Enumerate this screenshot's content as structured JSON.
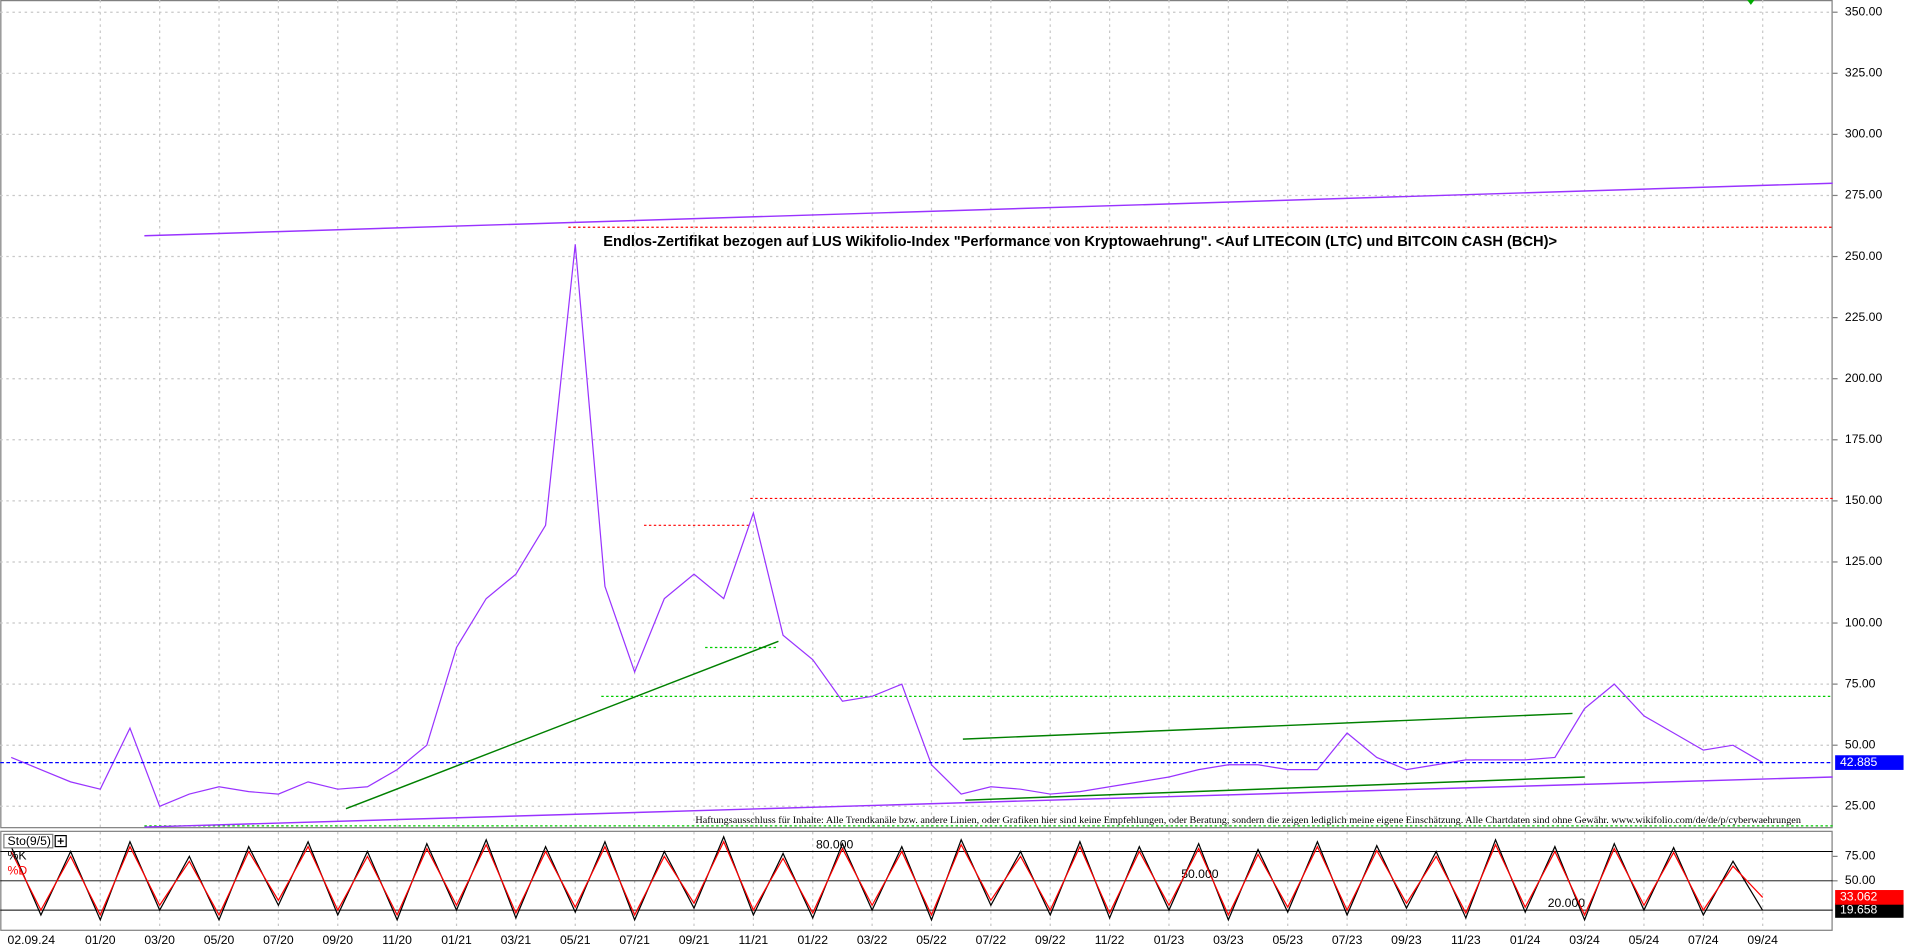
{
  "chart_data": [
    {
      "type": "line",
      "title": "Endlos-Zertifikat bezogen auf LUS Wikifolio-Index \"Performance von Kryptowaehrung\". <Auf LITECOIN (LTC) und BITCOIN CASH (BCH)>",
      "note": "Haftungsausschluss für Inhalte: Alle Trendkanäle bzw. andere Linien, oder Grafiken hier sind keine Empfehlungen, oder Beratung, sondern die zeigen lediglich meine eigene Einschätzung. Alle Chartdaten sind ohne Gewähr.  www.wikifolio.com/de/de/p/cyberwaehrungen",
      "date_label": "02.09.24",
      "categories": [
        null,
        null,
        null,
        "01/20",
        null,
        "03/20",
        null,
        "05/20",
        null,
        "07/20",
        null,
        "09/20",
        null,
        "11/20",
        null,
        "01/21",
        null,
        "03/21",
        null,
        "05/21",
        null,
        "07/21",
        null,
        "09/21",
        null,
        "11/21",
        null,
        "01/22",
        null,
        "03/22",
        null,
        "05/22",
        null,
        "07/22",
        null,
        "09/22",
        null,
        "11/22",
        null,
        "01/23",
        null,
        "03/23",
        null,
        "05/23",
        null,
        "07/23",
        null,
        "09/23",
        null,
        "11/23",
        null,
        "01/24",
        null,
        "03/24",
        null,
        "05/24",
        null,
        "07/24",
        null,
        "09/24",
        null,
        null
      ],
      "series": [
        {
          "color": "#9933ff",
          "values": [
            45,
            40,
            35,
            32,
            57,
            25,
            30,
            33,
            31,
            30,
            35,
            32,
            33,
            40,
            50,
            90,
            110,
            120,
            140,
            255,
            115,
            80,
            110,
            120,
            110,
            145,
            95,
            85,
            68,
            70,
            75,
            42,
            30,
            33,
            32,
            30,
            31,
            33,
            35,
            37,
            40,
            42,
            42,
            40,
            40,
            55,
            45,
            40,
            42,
            44,
            44,
            44,
            45,
            65,
            75,
            62,
            55,
            48,
            50,
            42.885,
            null,
            null
          ]
        }
      ],
      "levels": [
        {
          "value": 262,
          "color": "#ff0000"
        },
        {
          "value": 151,
          "color": "#ff0000"
        },
        {
          "value": 140,
          "color": "#ff0000"
        },
        {
          "value": 90,
          "color": "#00cc00"
        },
        {
          "value": 70,
          "color": "#00cc00"
        },
        {
          "value": 17,
          "color": "#00cc00"
        }
      ],
      "trendlines": [
        {
          "color": "#9933ff",
          "values": [
            258.5,
            280
          ]
        },
        {
          "color": "#9933ff",
          "values": [
            16.5,
            37
          ]
        },
        {
          "color": "#008000",
          "values": [
            24,
            92.5
          ]
        },
        {
          "color": "#008000",
          "values": [
            52.5,
            63
          ]
        },
        {
          "color": "#008000",
          "values": [
            27.5,
            37
          ]
        }
      ],
      "last_color": "#0000ff",
      "ylim": [
        16,
        355
      ],
      "yticks": [
        {
          "value": 25,
          "label": "25.00"
        },
        {
          "value": 50,
          "label": "50.00"
        },
        {
          "value": 75,
          "label": "75.00"
        },
        {
          "value": 100,
          "label": "100.00"
        },
        {
          "value": 125,
          "label": "125.00"
        },
        {
          "value": 150,
          "label": "150.00"
        },
        {
          "value": 175,
          "label": "175.00"
        },
        {
          "value": 200,
          "label": "200.00"
        },
        {
          "value": 225,
          "label": "225.00"
        },
        {
          "value": 250,
          "label": "250.00"
        },
        {
          "value": 275,
          "label": "275.00"
        },
        {
          "value": 300,
          "label": "300.00"
        },
        {
          "value": 325,
          "label": "325.00"
        },
        {
          "value": 350,
          "label": "350.00"
        }
      ],
      "grid": true
    },
    {
      "type": "stochastic",
      "title": "Sto(9/5)",
      "series": [
        {
          "name": "%K",
          "color": "#000000",
          "values": [
            85,
            15,
            80,
            10,
            90,
            20,
            75,
            10,
            85,
            25,
            90,
            15,
            80,
            10,
            88,
            20,
            92,
            12,
            85,
            18,
            90,
            10,
            80,
            22,
            95,
            15,
            78,
            12,
            88,
            20,
            85,
            10,
            92,
            25,
            80,
            15,
            90,
            12,
            85,
            20,
            88,
            10,
            82,
            18,
            90,
            15,
            86,
            22,
            80,
            12,
            92,
            18,
            85,
            10,
            88,
            20,
            84,
            15,
            70,
            19.658,
            null,
            null
          ]
        },
        {
          "name": "%D",
          "color": "#ff0000",
          "values": [
            80,
            20,
            75,
            15,
            85,
            25,
            70,
            15,
            80,
            30,
            85,
            20,
            75,
            15,
            83,
            25,
            87,
            17,
            80,
            23,
            85,
            15,
            75,
            27,
            90,
            20,
            73,
            17,
            83,
            25,
            80,
            15,
            87,
            30,
            75,
            20,
            85,
            17,
            80,
            25,
            83,
            15,
            77,
            23,
            85,
            20,
            81,
            27,
            75,
            17,
            87,
            23,
            80,
            15,
            83,
            25,
            79,
            20,
            65,
            33.062,
            null,
            null
          ]
        }
      ],
      "levels": [
        {
          "value": 80,
          "label": "80.000"
        },
        {
          "value": 50,
          "label": "50.000"
        },
        {
          "value": 20,
          "label": "20.000"
        }
      ],
      "ylim": [
        0,
        100
      ],
      "yticks": [
        {
          "value": 75,
          "label": "75.00"
        },
        {
          "value": 50,
          "label": "50.00"
        }
      ]
    }
  ]
}
